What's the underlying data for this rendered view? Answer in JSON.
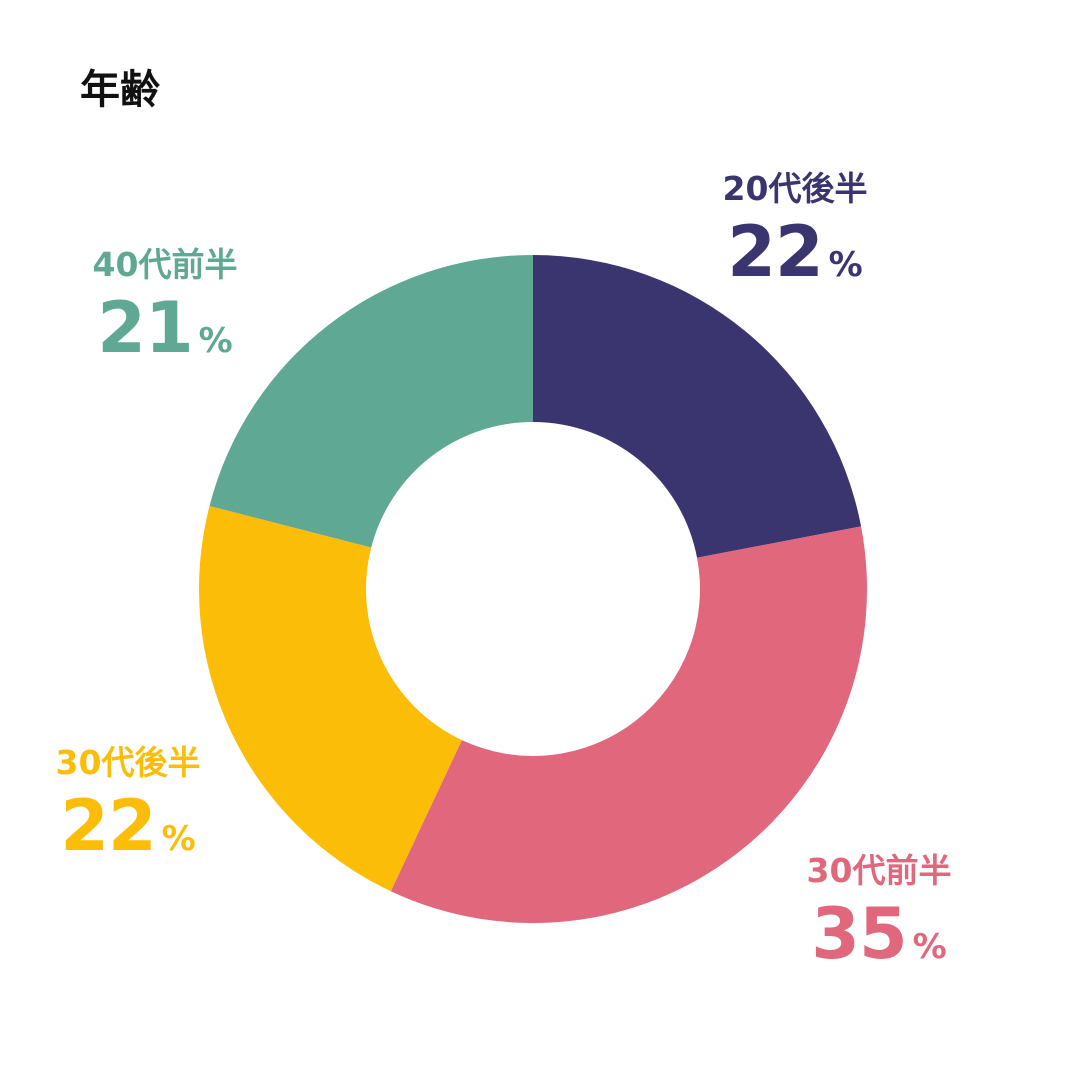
{
  "title": "年齢",
  "chart_data": {
    "type": "pie",
    "title": "年齢",
    "categories": [
      "20代後半",
      "30代前半",
      "30代後半",
      "40代前半"
    ],
    "values": [
      22,
      35,
      22,
      21
    ],
    "colors": [
      "#3b356f",
      "#e0677c",
      "#fbbd08",
      "#5fa894"
    ],
    "unit": "%",
    "donut": true
  },
  "labels": [
    {
      "category": "20代後半",
      "value": "22",
      "unit": "%",
      "color": "#3b356f"
    },
    {
      "category": "30代前半",
      "value": "35",
      "unit": "%",
      "color": "#e0677c"
    },
    {
      "category": "30代後半",
      "value": "22",
      "unit": "%",
      "color": "#fbbd08"
    },
    {
      "category": "40代前半",
      "value": "21",
      "unit": "%",
      "color": "#5fa894"
    }
  ]
}
